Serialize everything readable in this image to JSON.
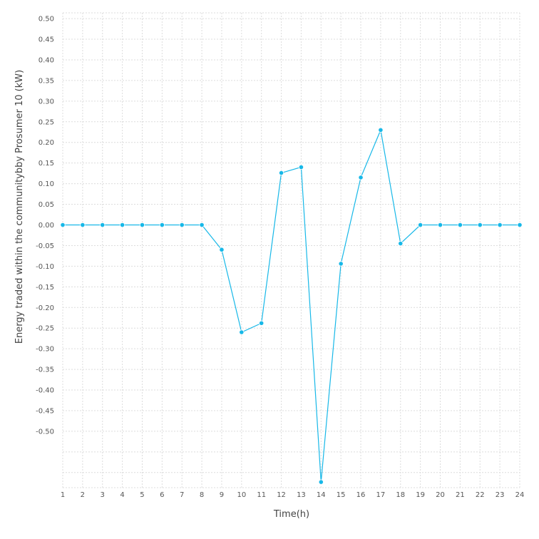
{
  "chart_data": {
    "type": "line",
    "title": "",
    "xlabel": "Time(h)",
    "ylabel": "Energy traded within the communitybby Prosumer 10 (kW)",
    "x": [
      1,
      2,
      3,
      4,
      5,
      6,
      7,
      8,
      9,
      10,
      11,
      12,
      13,
      14,
      15,
      16,
      17,
      18,
      19,
      20,
      21,
      22,
      23,
      24
    ],
    "x_ticks": [
      "1",
      "2",
      "3",
      "4",
      "5",
      "6",
      "7",
      "8",
      "9",
      "10",
      "11",
      "12",
      "13",
      "14",
      "15",
      "16",
      "17",
      "18",
      "19",
      "20",
      "21",
      "22",
      "23",
      "24"
    ],
    "y_ticks": [
      "0.50",
      "0.45",
      "0.40",
      "0.35",
      "0.30",
      "0.25",
      "0.20",
      "0.15",
      "0.10",
      "0.05",
      "0.00",
      "-0.05",
      "-0.10",
      "-0.15",
      "-0.20",
      "-0.25",
      "-0.30",
      "-0.35",
      "-0.40",
      "-0.45",
      "-0.50"
    ],
    "ylim": [
      -0.63,
      0.52
    ],
    "xlim": [
      1,
      24
    ],
    "grid": true,
    "series": [
      {
        "values": [
          0,
          0,
          0,
          0,
          0,
          0,
          0,
          0,
          -0.06,
          -0.26,
          -0.238,
          0.126,
          0.14,
          -0.623,
          -0.094,
          0.115,
          0.23,
          -0.045,
          0,
          0,
          0,
          0,
          0,
          0
        ]
      }
    ],
    "line_color": "#17b8e8"
  }
}
